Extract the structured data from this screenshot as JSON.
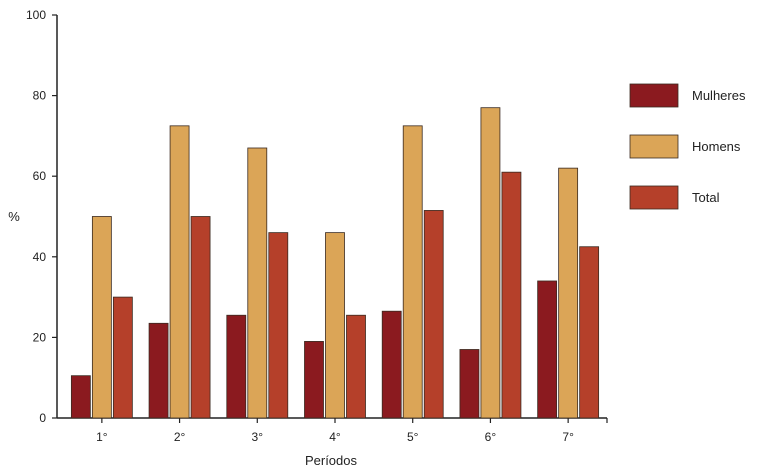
{
  "chart_data": {
    "type": "bar",
    "xlabel": "Períodos",
    "ylabel": "%",
    "ylim": [
      0,
      100
    ],
    "yticks": [
      0,
      20,
      40,
      60,
      80,
      100
    ],
    "categories": [
      "1°",
      "2°",
      "3°",
      "4°",
      "5°",
      "6°",
      "7°"
    ],
    "series": [
      {
        "name": "Mulheres",
        "color": "#8b1a1f",
        "values": [
          10.5,
          23.5,
          25.5,
          19,
          26.5,
          17,
          34
        ]
      },
      {
        "name": "Homens",
        "color": "#dba557",
        "values": [
          50,
          72.5,
          67,
          46,
          72.5,
          77,
          62
        ]
      },
      {
        "name": "Total",
        "color": "#b5402a",
        "values": [
          30,
          50,
          46,
          25.5,
          51.5,
          61,
          42.5
        ]
      }
    ],
    "grid": false,
    "legend_position": "right"
  }
}
